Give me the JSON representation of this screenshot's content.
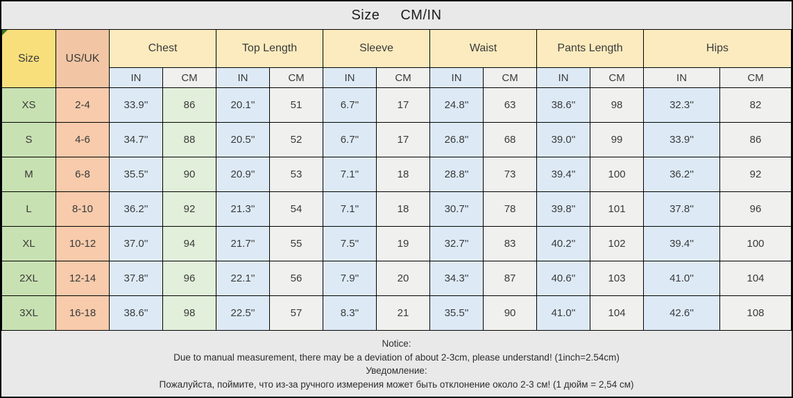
{
  "header": {
    "title": "Size",
    "unit": "CM/IN"
  },
  "table": {
    "corner_label": "Size",
    "us_uk_label": "US/UK",
    "groups": [
      "Chest",
      "Top Length",
      "Sleeve",
      "Waist",
      "Pants Length",
      "Hips"
    ],
    "unit_in": "IN",
    "unit_cm": "CM",
    "colors": {
      "corner_yellow": "#f9df7c",
      "group_cream": "#fcebbe",
      "usuk_salmon": "#f7cbab",
      "size_green": "#c8e1b2",
      "in_blue": "#ddeaf6",
      "cm_gray": "#f0f0ef",
      "chest_cm_green": "#e2efda",
      "background_gray": "#e9e9e9",
      "corner_marker_green": "#3c7a2a"
    }
  },
  "chart_data": {
    "type": "table",
    "title": "Size CM/IN",
    "columns": [
      "Size",
      "US/UK",
      "Chest IN",
      "Chest CM",
      "Top Length IN",
      "Top Length CM",
      "Sleeve IN",
      "Sleeve CM",
      "Waist IN",
      "Waist CM",
      "Pants Length IN",
      "Pants Length CM",
      "Hips IN",
      "Hips CM"
    ],
    "rows": [
      [
        "XS",
        "2-4",
        "33.9''",
        "86",
        "20.1''",
        "51",
        "6.7''",
        "17",
        "24.8''",
        "63",
        "38.6''",
        "98",
        "32.3''",
        "82"
      ],
      [
        "S",
        "4-6",
        "34.7''",
        "88",
        "20.5''",
        "52",
        "6.7''",
        "17",
        "26.8''",
        "68",
        "39.0''",
        "99",
        "33.9''",
        "86"
      ],
      [
        "M",
        "6-8",
        "35.5''",
        "90",
        "20.9''",
        "53",
        "7.1''",
        "18",
        "28.8''",
        "73",
        "39.4''",
        "100",
        "36.2''",
        "92"
      ],
      [
        "L",
        "8-10",
        "36.2''",
        "92",
        "21.3''",
        "54",
        "7.1''",
        "18",
        "30.7''",
        "78",
        "39.8''",
        "101",
        "37.8''",
        "96"
      ],
      [
        "XL",
        "10-12",
        "37.0''",
        "94",
        "21.7''",
        "55",
        "7.5''",
        "19",
        "32.7''",
        "83",
        "40.2''",
        "102",
        "39.4''",
        "100"
      ],
      [
        "2XL",
        "12-14",
        "37.8''",
        "96",
        "22.1''",
        "56",
        "7.9''",
        "20",
        "34.3''",
        "87",
        "40.6''",
        "103",
        "41.0''",
        "104"
      ],
      [
        "3XL",
        "16-18",
        "38.6''",
        "98",
        "22.5''",
        "57",
        "8.3''",
        "21",
        "35.5''",
        "90",
        "41.0''",
        "104",
        "42.6''",
        "108"
      ]
    ]
  },
  "notice": {
    "title_en": "Notice:",
    "line_en": "Due to manual measurement, there may be a deviation of about 2-3cm, please understand! (1inch=2.54cm)",
    "title_ru": "Уведомление:",
    "line_ru": "Пожалуйста, поймите, что из-за ручного измерения может быть отклонение около 2-3 см! (1 дюйм = 2,54 см)"
  }
}
